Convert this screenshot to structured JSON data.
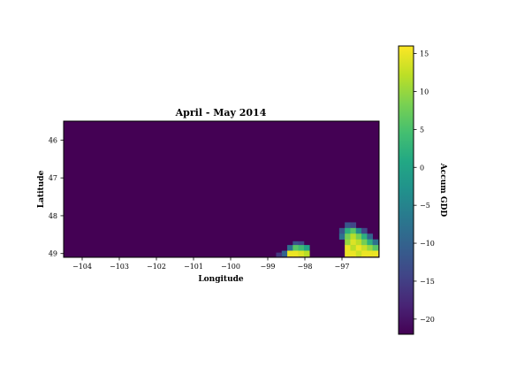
{
  "chart_data": {
    "type": "heatmap",
    "title": "April - May 2014",
    "xlabel": "Longitude",
    "ylabel": "Latitude",
    "colorbar_label": "Accum GDD",
    "colormap": "viridis",
    "background_color": "#440154",
    "xlim": [
      -104.5,
      -96.0
    ],
    "ylim": [
      45.5,
      49.1
    ],
    "y_inverted": true,
    "x_ticks": [
      -104,
      -103,
      -102,
      -101,
      -100,
      -99,
      -98,
      -97
    ],
    "x_tick_labels": [
      "−104",
      "−103",
      "−102",
      "−101",
      "−100",
      "−99",
      "−98",
      "−97"
    ],
    "y_ticks": [
      46,
      47,
      48,
      49
    ],
    "y_tick_labels": [
      "46",
      "47",
      "48",
      "49"
    ],
    "clim": [
      -22,
      16
    ],
    "colorbar_ticks": [
      15,
      10,
      5,
      0,
      -5,
      -10,
      -15,
      -20
    ],
    "colorbar_tick_labels": [
      "15",
      "10",
      "5",
      "0",
      "−5",
      "−10",
      "−15",
      "−20"
    ],
    "cell_size_deg": 0.15,
    "default_value": -22,
    "cells": [
      {
        "lon": -98.25,
        "lat": 48.75,
        "value": -12
      },
      {
        "lon": -98.1,
        "lat": 48.75,
        "value": -14
      },
      {
        "lon": -98.4,
        "lat": 48.85,
        "value": -8
      },
      {
        "lon": -98.25,
        "lat": 48.85,
        "value": 6
      },
      {
        "lon": -98.1,
        "lat": 48.85,
        "value": 4
      },
      {
        "lon": -97.95,
        "lat": 48.85,
        "value": 0
      },
      {
        "lon": -98.55,
        "lat": 49.0,
        "value": -10
      },
      {
        "lon": -98.4,
        "lat": 49.0,
        "value": 15
      },
      {
        "lon": -98.25,
        "lat": 49.0,
        "value": 15
      },
      {
        "lon": -98.1,
        "lat": 49.0,
        "value": 14
      },
      {
        "lon": -97.95,
        "lat": 49.0,
        "value": 12
      },
      {
        "lon": -98.7,
        "lat": 49.05,
        "value": -16
      },
      {
        "lon": -96.85,
        "lat": 48.25,
        "value": -12
      },
      {
        "lon": -96.7,
        "lat": 48.25,
        "value": -14
      },
      {
        "lon": -97.0,
        "lat": 48.4,
        "value": -12
      },
      {
        "lon": -96.85,
        "lat": 48.4,
        "value": 2
      },
      {
        "lon": -96.7,
        "lat": 48.4,
        "value": 6
      },
      {
        "lon": -96.55,
        "lat": 48.4,
        "value": -4
      },
      {
        "lon": -96.4,
        "lat": 48.4,
        "value": -14
      },
      {
        "lon": -97.0,
        "lat": 48.55,
        "value": -8
      },
      {
        "lon": -96.85,
        "lat": 48.55,
        "value": 8
      },
      {
        "lon": -96.7,
        "lat": 48.55,
        "value": 12
      },
      {
        "lon": -96.55,
        "lat": 48.55,
        "value": 8
      },
      {
        "lon": -96.4,
        "lat": 48.55,
        "value": 2
      },
      {
        "lon": -96.25,
        "lat": 48.55,
        "value": -10
      },
      {
        "lon": -96.85,
        "lat": 48.7,
        "value": 10
      },
      {
        "lon": -96.7,
        "lat": 48.7,
        "value": 14
      },
      {
        "lon": -96.55,
        "lat": 48.7,
        "value": 12
      },
      {
        "lon": -96.4,
        "lat": 48.7,
        "value": 8
      },
      {
        "lon": -96.25,
        "lat": 48.7,
        "value": 2
      },
      {
        "lon": -96.1,
        "lat": 48.7,
        "value": -8
      },
      {
        "lon": -96.85,
        "lat": 48.85,
        "value": 15
      },
      {
        "lon": -96.7,
        "lat": 48.85,
        "value": 12
      },
      {
        "lon": -96.55,
        "lat": 48.85,
        "value": 15
      },
      {
        "lon": -96.4,
        "lat": 48.85,
        "value": 13
      },
      {
        "lon": -96.25,
        "lat": 48.85,
        "value": 10
      },
      {
        "lon": -96.1,
        "lat": 48.85,
        "value": 6
      },
      {
        "lon": -96.85,
        "lat": 49.0,
        "value": 15
      },
      {
        "lon": -96.7,
        "lat": 49.0,
        "value": 15
      },
      {
        "lon": -96.55,
        "lat": 49.0,
        "value": 13
      },
      {
        "lon": -96.4,
        "lat": 49.0,
        "value": 15
      },
      {
        "lon": -96.25,
        "lat": 49.0,
        "value": 15
      },
      {
        "lon": -96.1,
        "lat": 49.0,
        "value": 15
      }
    ]
  }
}
